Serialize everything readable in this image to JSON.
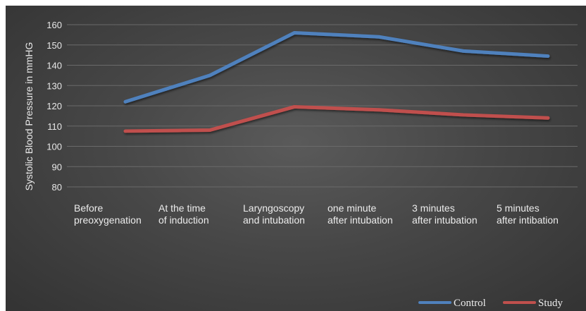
{
  "chart_data": {
    "type": "line",
    "title": "",
    "xlabel": "",
    "ylabel": "Systolic Blood Pressure in mmHG",
    "ylim": [
      80,
      160
    ],
    "yticks": [
      80,
      90,
      100,
      110,
      120,
      130,
      140,
      150,
      160
    ],
    "grid": true,
    "legend_position": "bottom-right",
    "categories": [
      [
        "Before",
        "preoxygenation"
      ],
      [
        "At the time",
        "of induction"
      ],
      [
        "Laryngoscopy",
        "and intubation"
      ],
      [
        "one minute",
        "after intubation"
      ],
      [
        "3 minutes",
        "after intubation"
      ],
      [
        "5 minutes",
        "after intibation"
      ]
    ],
    "series": [
      {
        "name": "Control",
        "color": "#4f81bd",
        "values": [
          122,
          135,
          156,
          154,
          147,
          144.5
        ]
      },
      {
        "name": "Study",
        "color": "#c0504d",
        "values": [
          107.5,
          108,
          119.5,
          118,
          115.5,
          114
        ]
      }
    ]
  }
}
